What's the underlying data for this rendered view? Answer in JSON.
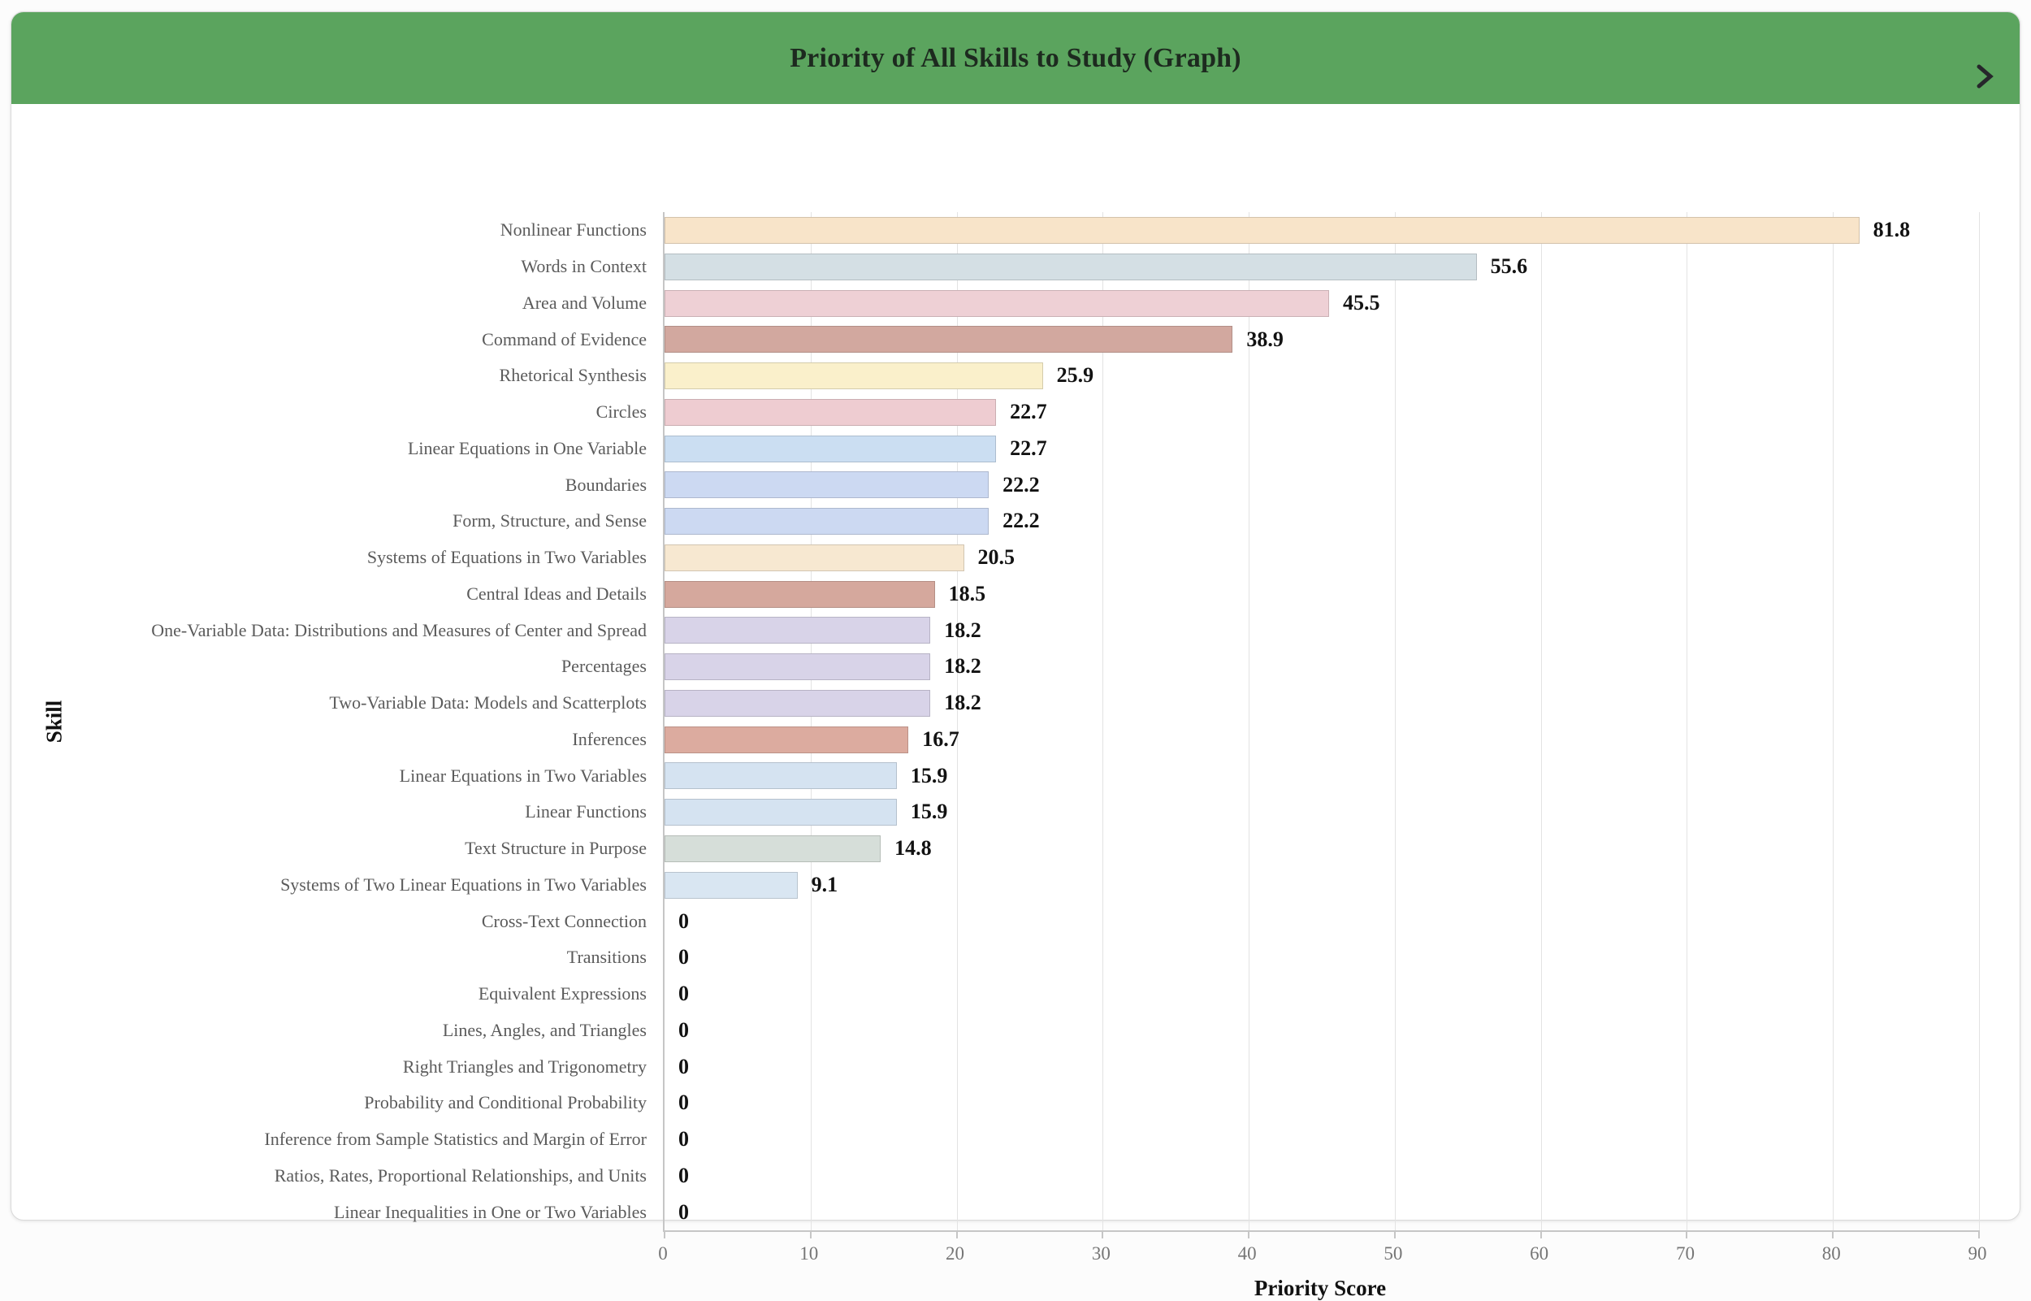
{
  "header": {
    "title": "Priority of All Skills to Study (Graph)",
    "chevron_icon": "chevron-right",
    "background_color": "#5ba45e",
    "title_color": "#1d2a1f"
  },
  "chart_data": {
    "type": "bar",
    "orientation": "horizontal",
    "title": "Priority of All Skills to Study (Graph)",
    "xlabel": "Priority Score",
    "ylabel": "Skill",
    "xlim": [
      0,
      90
    ],
    "xticks": [
      0,
      10,
      20,
      30,
      40,
      50,
      60,
      70,
      80,
      90
    ],
    "grid": "vertical",
    "legend": "none",
    "categories": [
      "Nonlinear Functions",
      "Words in Context",
      "Area and Volume",
      "Command of Evidence",
      "Rhetorical Synthesis",
      "Circles",
      "Linear Equations in One Variable",
      "Boundaries",
      "Form, Structure, and Sense",
      "Systems of Equations in Two Variables",
      "Central Ideas and Details",
      "One-Variable Data: Distributions and Measures of Center and Spread",
      "Percentages",
      "Two-Variable Data: Models and Scatterplots",
      "Inferences",
      "Linear Equations in Two Variables",
      "Linear Functions",
      "Text Structure in Purpose",
      "Systems of Two Linear Equations in Two Variables",
      "Cross-Text Connection",
      "Transitions",
      "Equivalent Expressions",
      "Lines, Angles, and Triangles",
      "Right Triangles and Trigonometry",
      "Probability and Conditional Probability",
      "Inference from Sample Statistics and Margin of Error",
      "Ratios, Rates, Proportional Relationships, and Units",
      "Linear Inequalities in One or Two Variables"
    ],
    "values": [
      81.8,
      55.6,
      45.5,
      38.9,
      25.9,
      22.7,
      22.7,
      22.2,
      22.2,
      20.5,
      18.5,
      18.2,
      18.2,
      18.2,
      16.7,
      15.9,
      15.9,
      14.8,
      9.1,
      0,
      0,
      0,
      0,
      0,
      0,
      0,
      0,
      0
    ],
    "value_labels": [
      "81.8",
      "55.6",
      "45.5",
      "38.9",
      "25.9",
      "22.7",
      "22.7",
      "22.2",
      "22.2",
      "20.5",
      "18.5",
      "18.2",
      "18.2",
      "18.2",
      "16.7",
      "15.9",
      "15.9",
      "14.8",
      "9.1",
      "0",
      "0",
      "0",
      "0",
      "0",
      "0",
      "0",
      "0",
      "0"
    ],
    "bar_colors": [
      "#f8e4c9",
      "#d4dfe4",
      "#eed0d5",
      "#d2a89f",
      "#faf0cb",
      "#eeccd1",
      "#cbdef2",
      "#ccd9f2",
      "#ccd9f2",
      "#f7e8d1",
      "#d5a89d",
      "#d8d3e8",
      "#d8d3e8",
      "#d8d3e8",
      "#dcab9f",
      "#d5e3f1",
      "#d5e3f1",
      "#d6ded9",
      "#d9e6f2",
      "none",
      "none",
      "none",
      "none",
      "none",
      "none",
      "none",
      "none",
      "none"
    ]
  },
  "colors": {
    "header_green": "#5ba45e",
    "category_label": "#5b5b5b",
    "value_label": "#121212",
    "tick_label": "#767676",
    "gridline": "#e3e3e3",
    "axis_line": "#c6c6c6",
    "card_border": "#d9d9d9",
    "chevron": "#26262b"
  }
}
